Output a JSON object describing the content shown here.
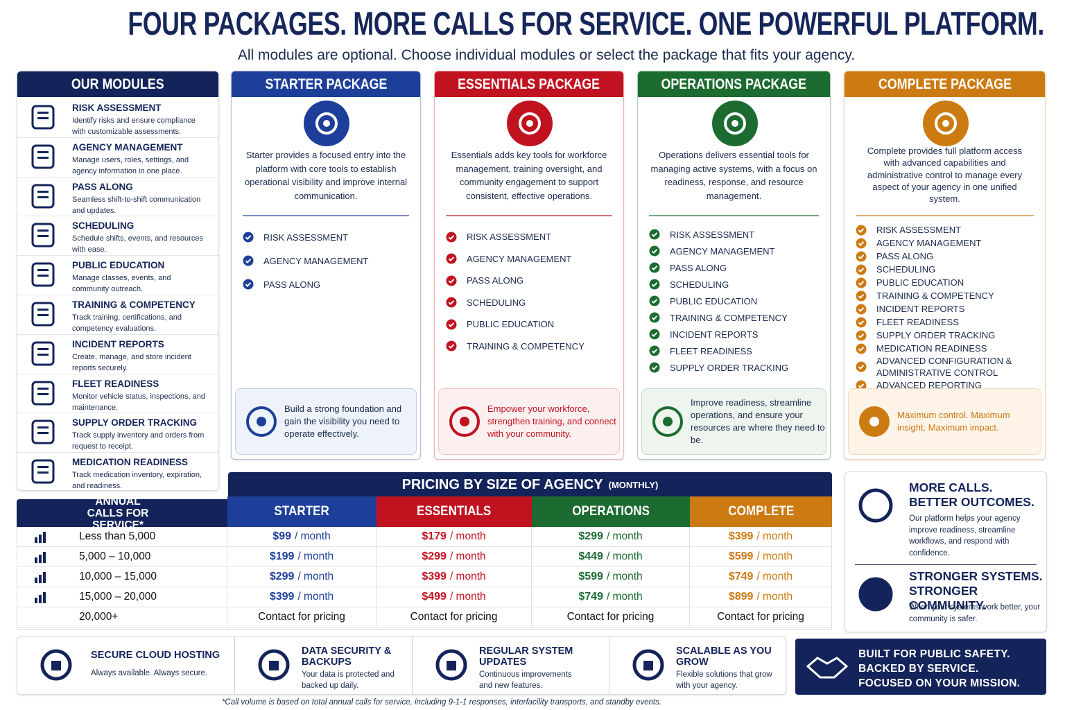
{
  "header": {
    "title": "FOUR PACKAGES. MORE CALLS FOR SERVICE. ONE POWERFUL PLATFORM.",
    "subtitle": "All modules are optional. Choose individual modules or select the package that fits your agency."
  },
  "modules": {
    "title": "OUR MODULES",
    "items": [
      {
        "name": "RISK ASSESSMENT",
        "desc": "Identify risks and ensure compliance with customizable assessments."
      },
      {
        "name": "AGENCY MANAGEMENT",
        "desc": "Manage users, roles, settings, and agency information in one place."
      },
      {
        "name": "PASS ALONG",
        "desc": "Seamless shift-to-shift communication and updates."
      },
      {
        "name": "SCHEDULING",
        "desc": "Schedule shifts, events, and resources with ease."
      },
      {
        "name": "PUBLIC EDUCATION",
        "desc": "Manage classes, events, and community outreach."
      },
      {
        "name": "TRAINING & COMPETENCY",
        "desc": "Track training, certifications, and competency evaluations."
      },
      {
        "name": "INCIDENT REPORTS",
        "desc": "Create, manage, and store incident reports securely."
      },
      {
        "name": "FLEET READINESS",
        "desc": "Monitor vehicle status, inspections, and maintenance."
      },
      {
        "name": "SUPPLY ORDER TRACKING",
        "desc": "Track supply inventory and orders from request to receipt."
      },
      {
        "name": "MEDICATION READINESS",
        "desc": "Track medication inventory, expiration, and readiness."
      }
    ]
  },
  "packages": [
    {
      "title": "STARTER PACKAGE",
      "description": "Starter provides a focused entry into the platform with core tools to establish operational visibility and improve internal communication.",
      "features": [
        "RISK ASSESSMENT",
        "AGENCY MANAGEMENT",
        "PASS ALONG"
      ],
      "tagline": "Build a strong foundation and gain the visibility you need to operate effectively."
    },
    {
      "title": "ESSENTIALS PACKAGE",
      "description": "Essentials adds key tools for workforce management, training oversight, and community engagement to support consistent, effective operations.",
      "features": [
        "RISK ASSESSMENT",
        "AGENCY MANAGEMENT",
        "PASS ALONG",
        "SCHEDULING",
        "PUBLIC EDUCATION",
        "TRAINING & COMPETENCY"
      ],
      "tagline": "Empower your workforce, strengthen training, and connect with your community."
    },
    {
      "title": "OPERATIONS PACKAGE",
      "description": "Operations delivers essential tools for managing active systems, with a focus on readiness, response, and resource management.",
      "features": [
        "RISK ASSESSMENT",
        "AGENCY MANAGEMENT",
        "PASS ALONG",
        "SCHEDULING",
        "PUBLIC EDUCATION",
        "TRAINING & COMPETENCY",
        "INCIDENT REPORTS",
        "FLEET READINESS",
        "SUPPLY ORDER TRACKING"
      ],
      "tagline": "Improve readiness, streamline operations, and ensure your resources are where they need to be."
    },
    {
      "title": "COMPLETE PACKAGE",
      "description": "Complete provides full platform access with advanced capabilities and administrative control to manage every aspect of your agency in one unified system.",
      "features": [
        "RISK ASSESSMENT",
        "AGENCY MANAGEMENT",
        "PASS ALONG",
        "SCHEDULING",
        "PUBLIC EDUCATION",
        "TRAINING & COMPETENCY",
        "INCIDENT REPORTS",
        "FLEET READINESS",
        "SUPPLY ORDER TRACKING",
        "MEDICATION READINESS",
        "ADVANCED CONFIGURATION & ADMINISTRATIVE CONTROL",
        "ADVANCED REPORTING"
      ],
      "tagline": "Maximum control. Maximum insight. Maximum impact."
    }
  ],
  "pricing": {
    "title": "PRICING BY SIZE OF AGENCY",
    "note": "(MONTHLY)",
    "row_header": "ANNUAL CALLS FOR SERVICE*",
    "columns": [
      "STARTER",
      "ESSENTIALS",
      "OPERATIONS",
      "COMPLETE"
    ],
    "unit": "/ month",
    "rows": [
      {
        "calls": "Less than 5,000",
        "prices": [
          "$99",
          "$179",
          "$299",
          "$399"
        ]
      },
      {
        "calls": "5,000 – 10,000",
        "prices": [
          "$199",
          "$299",
          "$449",
          "$599"
        ]
      },
      {
        "calls": "10,000 – 15,000",
        "prices": [
          "$299",
          "$399",
          "$599",
          "$749"
        ]
      },
      {
        "calls": "15,000 – 20,000",
        "prices": [
          "$399",
          "$499",
          "$749",
          "$899"
        ]
      }
    ],
    "last_row": {
      "calls": "20,000+",
      "text": "Contact for pricing"
    }
  },
  "benefits": [
    {
      "lines": [
        "MORE CALLS.",
        "BETTER OUTCOMES."
      ],
      "text": "Our platform helps your agency improve readiness, streamline workflows, and respond with confidence."
    },
    {
      "lines": [
        "STRONGER SYSTEMS.",
        "STRONGER COMMUNITY."
      ],
      "text": "When your systems work better, your community is safer."
    }
  ],
  "features": [
    {
      "title": "SECURE CLOUD HOSTING",
      "text": "Always available. Always secure."
    },
    {
      "title": "DATA SECURITY & BACKUPS",
      "text": "Your data is protected and backed up daily."
    },
    {
      "title": "REGULAR SYSTEM UPDATES",
      "text": "Continuous improvements and new features."
    },
    {
      "title": "SCALABLE AS YOU GROW",
      "text": "Flexible solutions that grow with your agency."
    }
  ],
  "banner": {
    "lines": [
      "BUILT FOR PUBLIC SAFETY.",
      "BACKED BY SERVICE.",
      "FOCUSED ON YOUR MISSION."
    ]
  },
  "footnote": "*Call volume is based on total annual calls for service, including 9-1-1 responses, interfacility transports, and standby events."
}
